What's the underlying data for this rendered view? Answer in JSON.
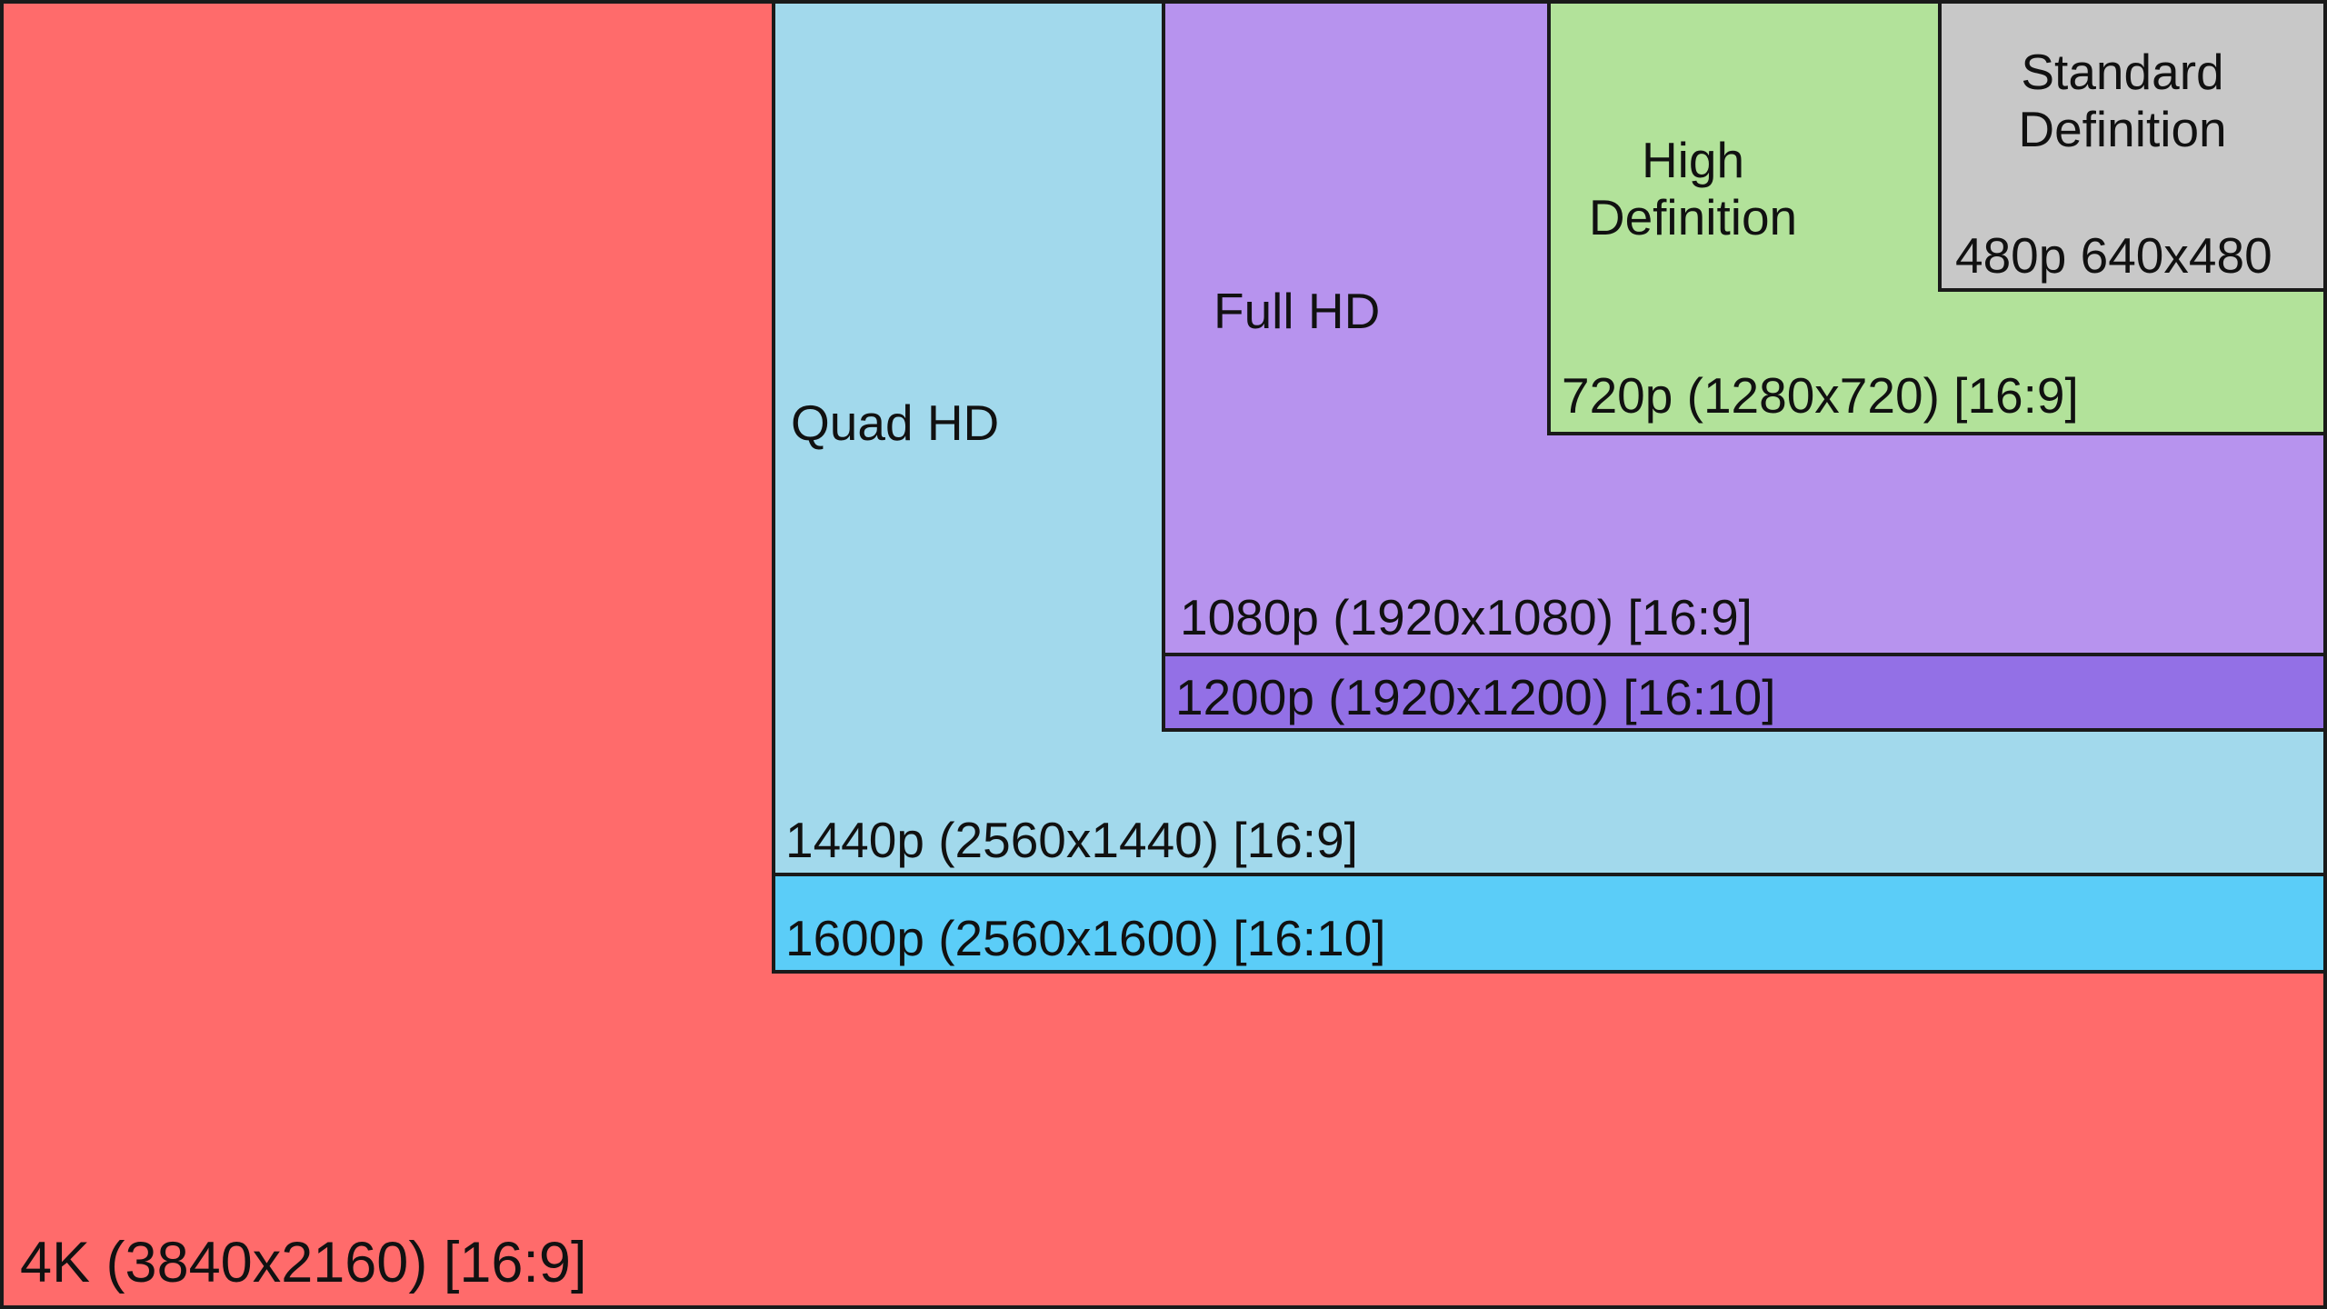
{
  "colors": {
    "uhd_4k": "#ff6b6b",
    "qhd_1600p": "#5bcdf8",
    "qhd_1440p": "#a2d9ec",
    "fhd_1200p": "#9370e6",
    "fhd_1080p": "#b793ee",
    "hd_720p": "#b2e29a",
    "sd_480p": "#c8c8c8",
    "border": "#1a1a1a"
  },
  "categories": {
    "quad_hd": "Quad HD",
    "full_hd": "Full HD",
    "high_definition": [
      "High",
      "Definition"
    ],
    "standard_definition": [
      "Standard",
      "Definition"
    ]
  },
  "resolutions": {
    "uhd_4k": "4K (3840x2160) [16:9]",
    "p1600": "1600p (2560x1600) [16:10]",
    "p1440": "1440p (2560x1440) [16:9]",
    "p1200": "1200p (1920x1200) [16:10]",
    "p1080": "1080p (1920x1080) [16:9]",
    "p720": "720p (1280x720) [16:9]",
    "p480": "480p 640x480"
  }
}
